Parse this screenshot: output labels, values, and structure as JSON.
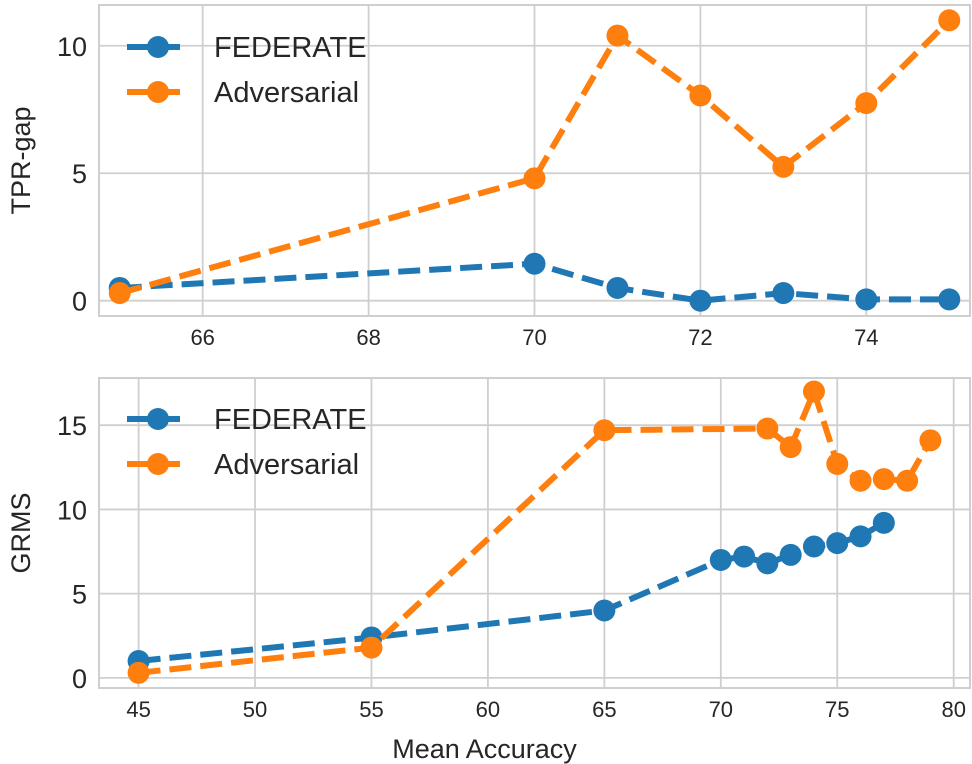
{
  "chart_data": [
    {
      "type": "line",
      "title": "",
      "xlabel": "",
      "ylabel": "TPR-gap",
      "xlim": [
        64.75,
        75.25
      ],
      "ylim": [
        -0.6,
        11.6
      ],
      "xticks": [
        66,
        68,
        70,
        72,
        74
      ],
      "yticks": [
        0,
        5,
        10
      ],
      "grid": true,
      "legend": "top-left",
      "series": [
        {
          "name": "FEDERATE",
          "color": "#1f77b4",
          "x": [
            65,
            70,
            71,
            72,
            73,
            74,
            75
          ],
          "y": [
            0.5,
            1.45,
            0.5,
            0.0,
            0.3,
            0.05,
            0.05
          ]
        },
        {
          "name": "Adversarial",
          "color": "#ff7f0e",
          "x": [
            65,
            70,
            71,
            72,
            73,
            74,
            75
          ],
          "y": [
            0.3,
            4.8,
            10.4,
            8.05,
            5.25,
            7.75,
            11.0
          ]
        }
      ]
    },
    {
      "type": "line",
      "title": "",
      "xlabel": "Mean Accuracy",
      "ylabel": "GRMS",
      "xlim": [
        43.3,
        80.7
      ],
      "ylim": [
        -0.6,
        17.8
      ],
      "xticks": [
        45,
        50,
        55,
        60,
        65,
        70,
        75,
        80
      ],
      "yticks": [
        0,
        5,
        10,
        15
      ],
      "grid": true,
      "legend": "top-left",
      "series": [
        {
          "name": "FEDERATE",
          "color": "#1f77b4",
          "x": [
            45,
            55,
            65,
            70,
            71,
            72,
            73,
            74,
            75,
            76,
            77
          ],
          "y": [
            1.0,
            2.4,
            4.0,
            7.0,
            7.2,
            6.8,
            7.3,
            7.8,
            8.0,
            8.4,
            9.2
          ]
        },
        {
          "name": "Adversarial",
          "color": "#ff7f0e",
          "x": [
            45,
            55,
            65,
            72,
            73,
            74,
            75,
            76,
            77,
            78,
            79
          ],
          "y": [
            0.3,
            1.8,
            14.7,
            14.8,
            13.7,
            17.0,
            12.7,
            11.7,
            11.8,
            11.7,
            14.1
          ]
        }
      ]
    }
  ]
}
